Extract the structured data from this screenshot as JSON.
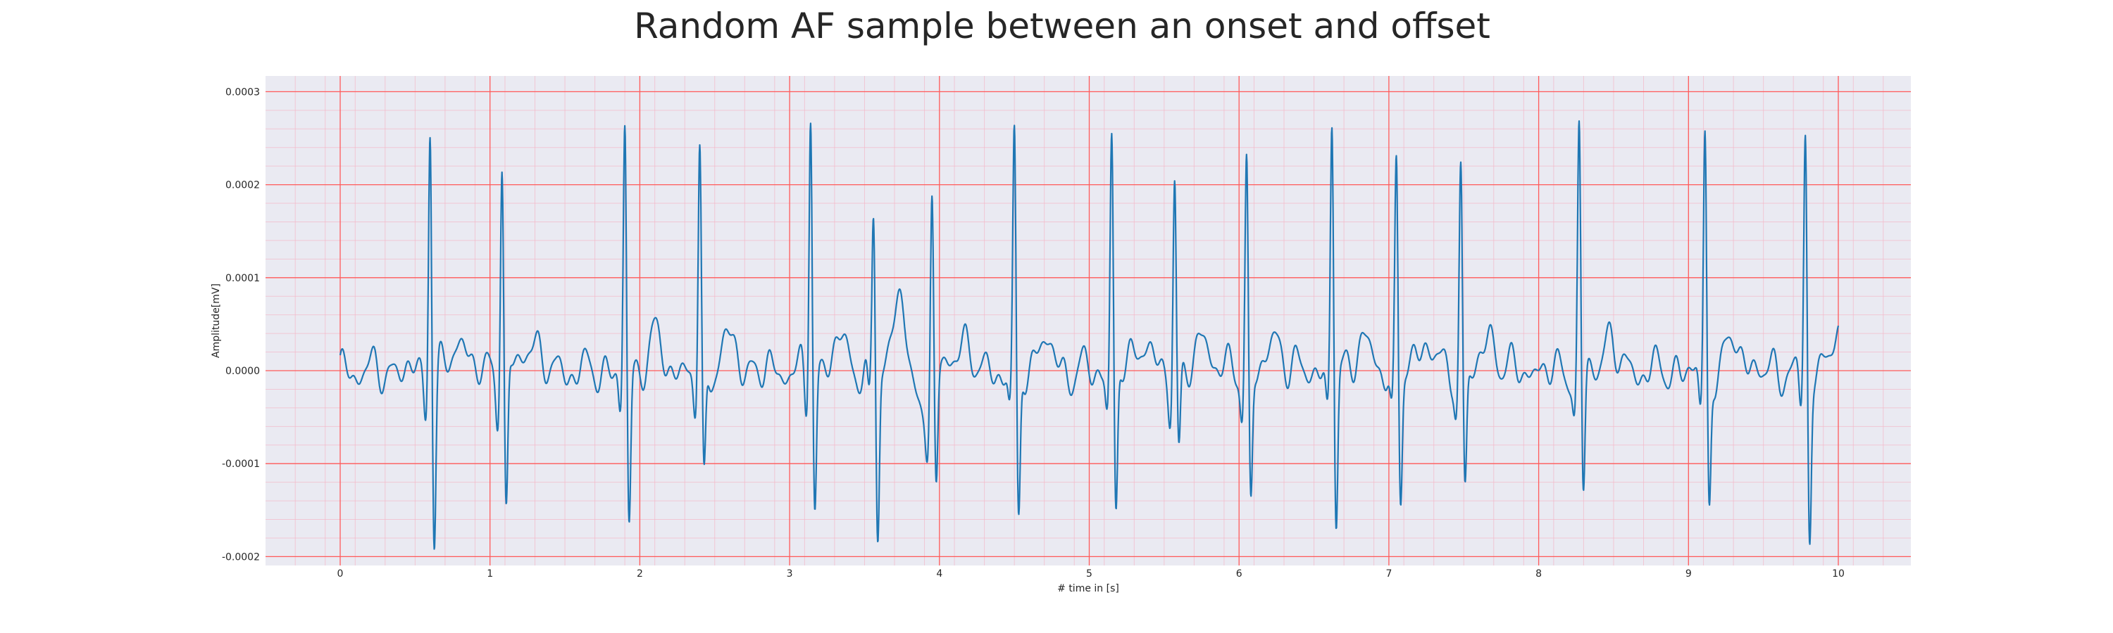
{
  "chart_data": {
    "type": "line",
    "title": "Random AF sample between an onset and offset",
    "xlabel": "# time in [s]",
    "ylabel": "Amplitude[mV]",
    "xlim": [
      -0.5,
      10.5
    ],
    "ylim": [
      -0.0002,
      0.0003
    ],
    "xticks": [
      0,
      1,
      2,
      3,
      4,
      5,
      6,
      7,
      8,
      9,
      10
    ],
    "yticks": [
      -0.0002,
      -0.0001,
      0.0,
      0.0001,
      0.0002,
      0.0003
    ],
    "xtick_labels": [
      "0",
      "1",
      "2",
      "3",
      "4",
      "5",
      "6",
      "7",
      "8",
      "9",
      "10"
    ],
    "ytick_labels": [
      "-0.0002",
      "-0.0001",
      "0.0000",
      "0.0001",
      "0.0002",
      "0.0003"
    ],
    "grid": "on",
    "plot_background": "#eaeaf2",
    "major_grid_color": "#ff5a5a",
    "minor_grid_color": "#f4b8c8",
    "line_color": "#1f77b4",
    "series": [
      {
        "beats": [
          {
            "t": 0.6,
            "peak": 0.00028,
            "trough": -0.000185
          },
          {
            "t": 1.08,
            "peak": 0.00024,
            "trough": -0.00016
          },
          {
            "t": 1.9,
            "peak": 0.000265,
            "trough": -0.000172
          },
          {
            "t": 2.4,
            "peak": 0.000237,
            "trough": -0.000127
          },
          {
            "t": 3.14,
            "peak": 0.000293,
            "trough": -0.00015
          },
          {
            "t": 3.56,
            "peak": 0.00017,
            "trough": -0.000184
          },
          {
            "t": 3.95,
            "peak": 0.000204,
            "trough": -0.00013
          },
          {
            "t": 4.5,
            "peak": 0.000253,
            "trough": -0.00017
          },
          {
            "t": 5.15,
            "peak": 0.00026,
            "trough": -0.000157
          },
          {
            "t": 5.57,
            "peak": 0.000212,
            "trough": -9e-05
          },
          {
            "t": 6.05,
            "peak": 0.000232,
            "trough": -0.000148
          },
          {
            "t": 6.62,
            "peak": 0.000278,
            "trough": -0.00017
          },
          {
            "t": 7.05,
            "peak": 0.000232,
            "trough": -0.00014
          },
          {
            "t": 7.48,
            "peak": 0.000222,
            "trough": -0.000126
          },
          {
            "t": 8.27,
            "peak": 0.00026,
            "trough": -0.000138
          },
          {
            "t": 9.11,
            "peak": 0.00026,
            "trough": -0.000148
          },
          {
            "t": 9.78,
            "peak": 0.000256,
            "trough": -0.000182
          }
        ]
      }
    ]
  }
}
